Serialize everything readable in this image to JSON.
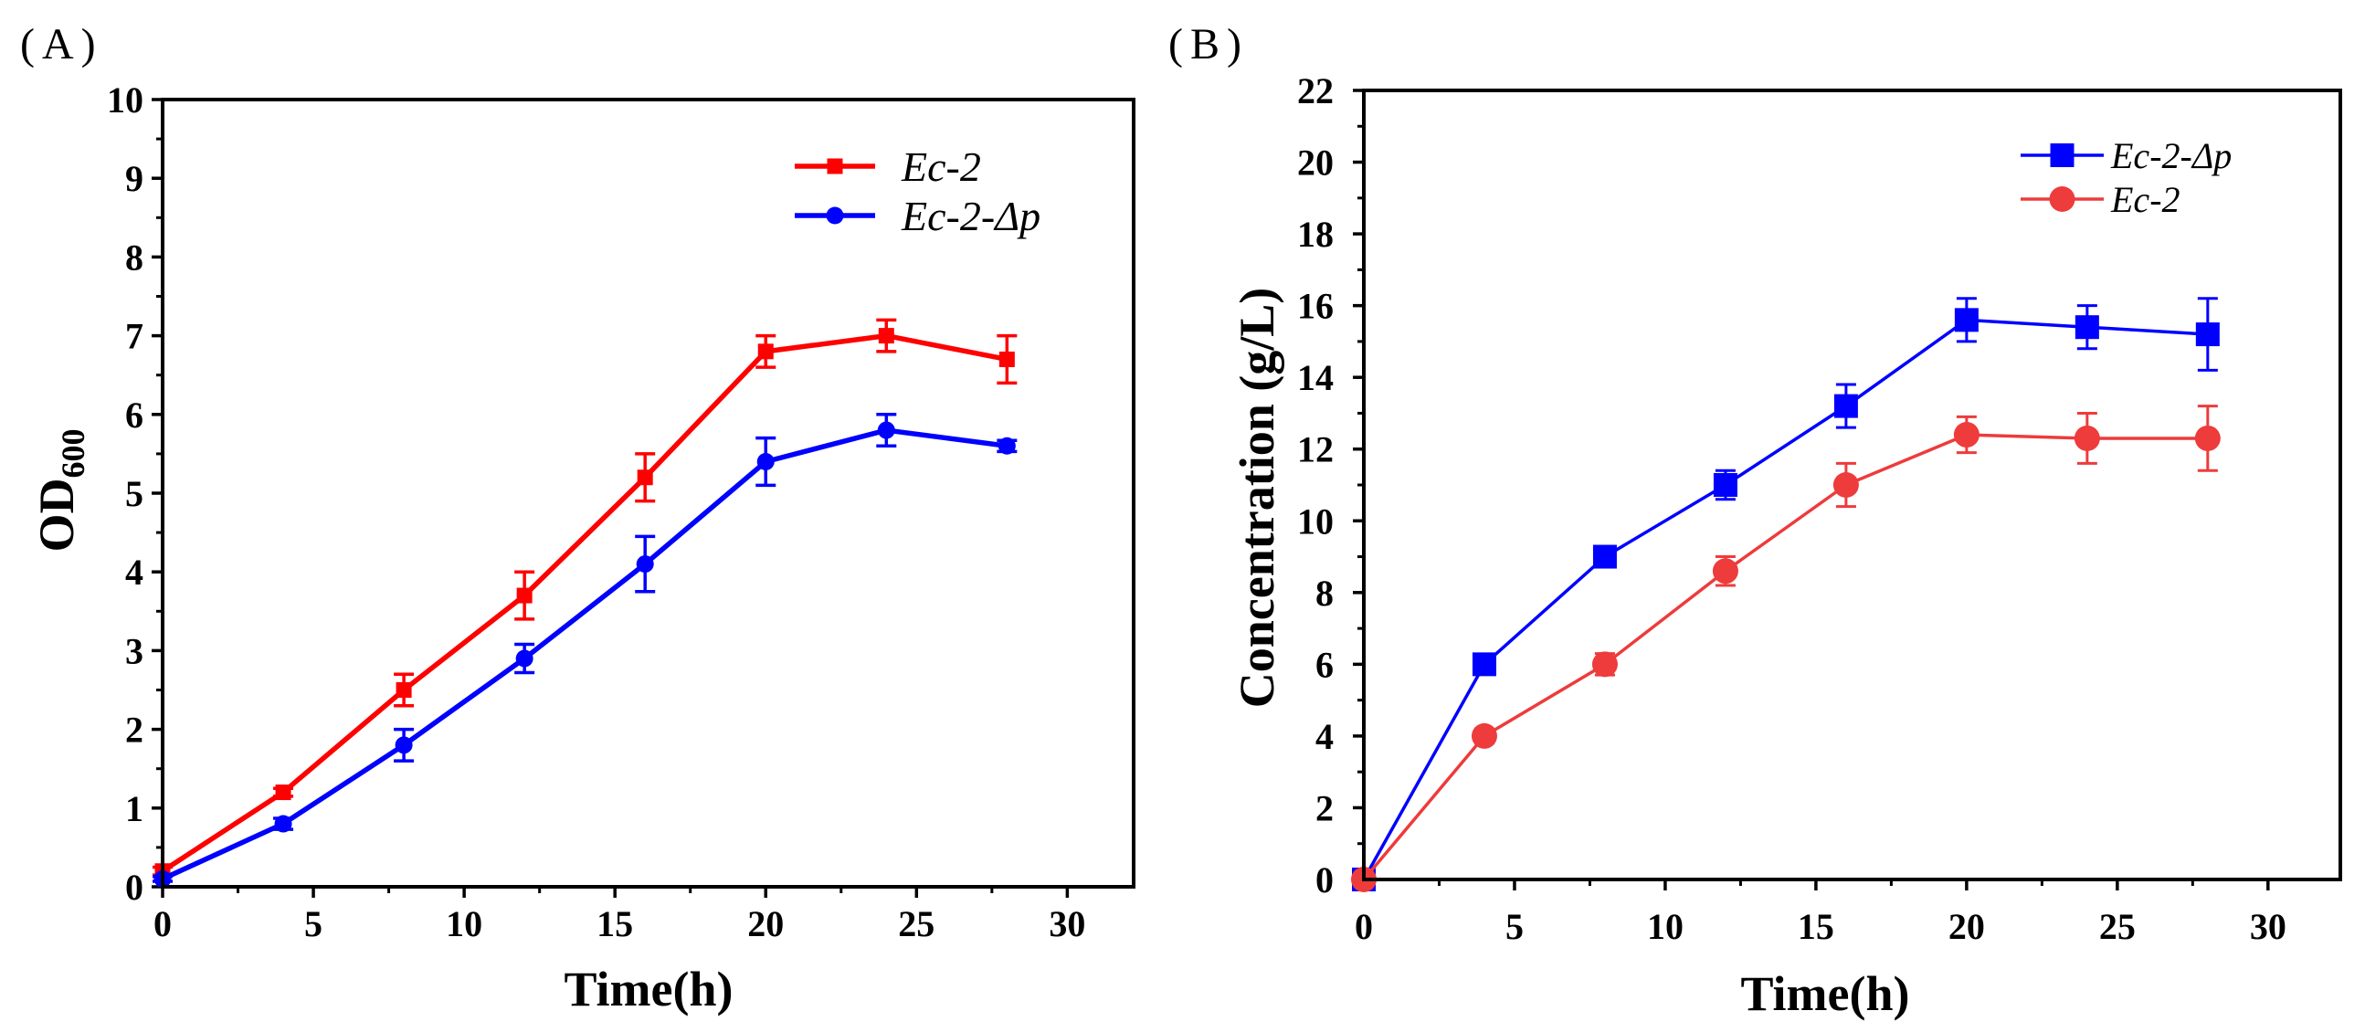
{
  "chart_data": [
    {
      "panel_label": "(A)",
      "type": "line",
      "title": "",
      "xlabel": "Time(h)",
      "ylabel": "OD",
      "ylabel_sub": "600",
      "xlim": [
        0,
        32.2
      ],
      "ylim": [
        0,
        10
      ],
      "xticks": [
        "0",
        "5",
        "10",
        "15",
        "20",
        "25",
        "30"
      ],
      "yticks": [
        "0",
        "1",
        "2",
        "3",
        "4",
        "5",
        "6",
        "7",
        "8",
        "9",
        "10"
      ],
      "grid": false,
      "legend": "top-right",
      "series": [
        {
          "name": "Ec-2",
          "marker": "square",
          "color": "#FF0000",
          "x": [
            0,
            4,
            8,
            12,
            16,
            20,
            24,
            28
          ],
          "y": [
            0.2,
            1.2,
            2.5,
            3.7,
            5.2,
            6.8,
            7.0,
            6.7
          ],
          "error": [
            0.05,
            0.05,
            0.2,
            0.3,
            0.3,
            0.2,
            0.2,
            0.3
          ]
        },
        {
          "name": "Ec-2-Δp",
          "marker": "circle",
          "color": "#0000FF",
          "x": [
            0,
            4,
            8,
            12,
            16,
            20,
            24,
            28
          ],
          "y": [
            0.1,
            0.8,
            1.8,
            2.9,
            4.1,
            5.4,
            5.8,
            5.6
          ],
          "error": [
            0.03,
            0.07,
            0.2,
            0.18,
            0.35,
            0.3,
            0.2,
            0.07
          ]
        }
      ]
    },
    {
      "panel_label": "(B)",
      "type": "line",
      "title": "",
      "xlabel": "Time(h)",
      "ylabel": "Concentration (g/L)",
      "xlim": [
        0,
        32.4
      ],
      "ylim": [
        0,
        22
      ],
      "xticks": [
        "0",
        "5",
        "10",
        "15",
        "20",
        "25",
        "30"
      ],
      "yticks": [
        "0",
        "2",
        "4",
        "6",
        "8",
        "10",
        "12",
        "14",
        "16",
        "18",
        "20",
        "22"
      ],
      "grid": false,
      "legend": "top-right",
      "series": [
        {
          "name": "Ec-2-Δp",
          "marker": "square",
          "color": "#0000FF",
          "x": [
            0,
            4,
            8,
            12,
            16,
            20,
            24,
            28
          ],
          "y": [
            0,
            6.0,
            9.0,
            11.0,
            13.2,
            15.6,
            15.4,
            15.2
          ],
          "error": [
            0.1,
            0.2,
            0.2,
            0.4,
            0.6,
            0.6,
            0.6,
            1.0
          ]
        },
        {
          "name": "Ec-2",
          "marker": "circle",
          "color": "#EE3B3B",
          "x": [
            0,
            4,
            8,
            12,
            16,
            20,
            24,
            28
          ],
          "y": [
            0,
            4.0,
            6.0,
            8.6,
            11.0,
            12.4,
            12.3,
            12.3
          ],
          "error": [
            0.1,
            0.2,
            0.3,
            0.4,
            0.6,
            0.5,
            0.7,
            0.9
          ]
        }
      ]
    }
  ]
}
